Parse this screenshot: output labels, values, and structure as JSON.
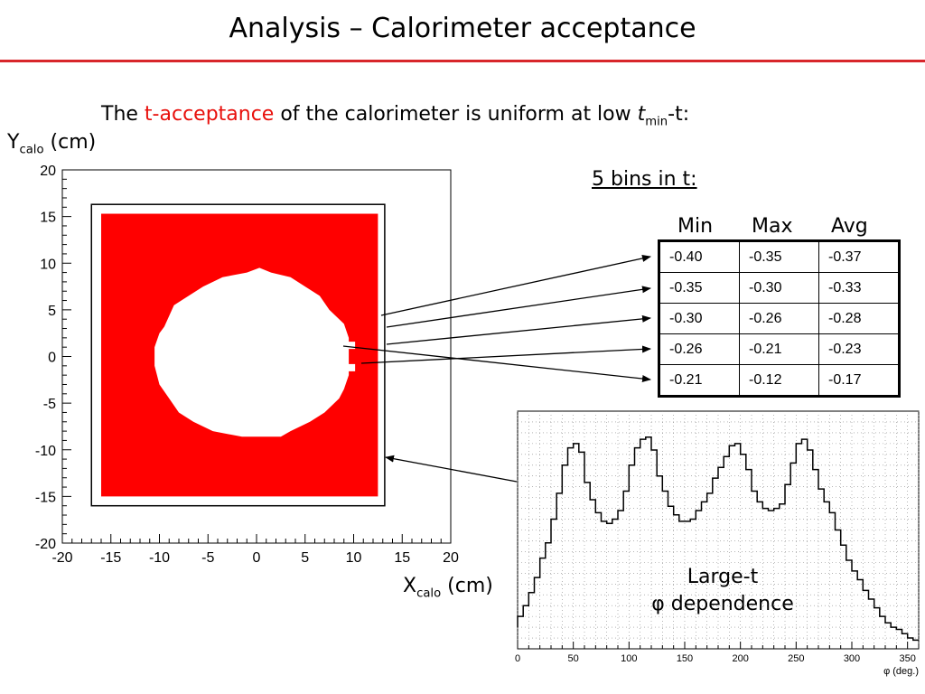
{
  "slide": {
    "title": "Analysis – Calorimeter acceptance",
    "subtitle_pre": "The ",
    "subtitle_highlight": "t-acceptance",
    "subtitle_post": " of the calorimeter is uniform at low ",
    "subtitle_t": "t",
    "subtitle_sub": "min",
    "subtitle_end": "-t:",
    "y_label": "Y",
    "y_label_sub": "calo",
    "y_label_unit": " (cm)",
    "x_label": "X",
    "x_label_sub": "calo",
    "x_label_unit": " (cm)",
    "bins_title": "5 bins in t:",
    "note_line1": "Large-t",
    "note_line2": "φ dependence",
    "accent_color": "#e8100c"
  },
  "table": {
    "headers": [
      "Min",
      "Max",
      "Avg"
    ],
    "rows": [
      [
        "-0.40",
        "-0.35",
        "-0.37"
      ],
      [
        "-0.35",
        "-0.30",
        "-0.33"
      ],
      [
        "-0.30",
        "-0.26",
        "-0.28"
      ],
      [
        "-0.26",
        "-0.21",
        "-0.23"
      ],
      [
        "-0.21",
        "-0.12",
        "-0.17"
      ]
    ]
  },
  "chart_data": [
    {
      "type": "heatmap",
      "title": "",
      "xlabel": "",
      "ylabel": "",
      "xlim": [
        -20,
        20
      ],
      "ylim": [
        -20,
        20
      ],
      "x_ticks": [
        "-20",
        "-15",
        "-10",
        "-5",
        "0",
        "5",
        "10",
        "15",
        "20"
      ],
      "y_ticks": [
        "20",
        "15",
        "10",
        "5",
        "0",
        "-5",
        "-10",
        "-15",
        "-20"
      ],
      "filled_region": {
        "x": [
          -16,
          12.5
        ],
        "y": [
          -15,
          15.3
        ],
        "color": "#ff0000"
      },
      "outer_frame": {
        "x": [
          -17,
          13.2
        ],
        "y": [
          -16,
          16.3
        ]
      },
      "hole_boundary": [
        [
          -9.5,
          3.2
        ],
        [
          -8.5,
          5.5
        ],
        [
          -7,
          6.5
        ],
        [
          -5.5,
          7.5
        ],
        [
          -3.5,
          8.5
        ],
        [
          -1,
          9
        ],
        [
          0.3,
          9.5
        ],
        [
          1.5,
          9
        ],
        [
          3.5,
          8.5
        ],
        [
          5,
          7.5
        ],
        [
          6.5,
          6.5
        ],
        [
          7.5,
          5
        ],
        [
          9,
          3.5
        ],
        [
          9.5,
          2
        ],
        [
          9.5,
          0
        ],
        [
          9.5,
          -2
        ],
        [
          9,
          -3.5
        ],
        [
          8.5,
          -4.5
        ],
        [
          7,
          -6
        ],
        [
          5.5,
          -7
        ],
        [
          3.5,
          -8
        ],
        [
          2.5,
          -8.6
        ],
        [
          -1.5,
          -8.6
        ],
        [
          -4.5,
          -8
        ],
        [
          -6.5,
          -7
        ],
        [
          -8,
          -6
        ],
        [
          -9,
          -4.5
        ],
        [
          -10,
          -3
        ],
        [
          -10.5,
          -1
        ],
        [
          -10.5,
          1
        ],
        [
          -10,
          2.5
        ]
      ],
      "hole_notches": [
        [
          9.5,
          1.2
        ],
        [
          9.5,
          -1.2
        ]
      ]
    },
    {
      "type": "line",
      "title": "",
      "xlabel": "φ (deg.)",
      "ylabel": "",
      "xlim": [
        0,
        360
      ],
      "ylim": [
        0,
        1.1
      ],
      "x_ticks": [
        "0",
        "50",
        "100",
        "150",
        "200",
        "250",
        "300",
        "350"
      ],
      "series": [
        {
          "x": [
            -2.5,
            2.5,
            7.5,
            12.5,
            17.5,
            22.5,
            27.5,
            32.5,
            37.5,
            42.5,
            47.5,
            52.5,
            57.5,
            62.5,
            67.5,
            72.5,
            77.5,
            82.5,
            87.5,
            92.5,
            97.5,
            102.5,
            107.5,
            112.5,
            117.5,
            122.5,
            127.5,
            132.5,
            137.5,
            142.5,
            147.5,
            152.5,
            157.5,
            162.5,
            167.5,
            172.5,
            177.5,
            182.5,
            187.5,
            192.5,
            197.5,
            202.5,
            207.5,
            212.5,
            217.5,
            222.5,
            227.5,
            232.5,
            237.5,
            242.5,
            247.5,
            252.5,
            257.5,
            262.5,
            267.5,
            272.5,
            277.5,
            282.5,
            287.5,
            292.5,
            297.5,
            302.5,
            307.5,
            312.5,
            317.5,
            322.5,
            327.5,
            332.5,
            337.5,
            342.5,
            347.5,
            352.5,
            357.5
          ],
          "values": [
            0.1,
            0.15,
            0.2,
            0.26,
            0.33,
            0.42,
            0.49,
            0.6,
            0.72,
            0.85,
            0.93,
            0.95,
            0.91,
            0.77,
            0.69,
            0.63,
            0.59,
            0.58,
            0.6,
            0.64,
            0.73,
            0.85,
            0.93,
            0.97,
            0.98,
            0.92,
            0.8,
            0.73,
            0.66,
            0.62,
            0.59,
            0.59,
            0.6,
            0.64,
            0.68,
            0.72,
            0.79,
            0.84,
            0.89,
            0.94,
            0.95,
            0.9,
            0.83,
            0.73,
            0.68,
            0.65,
            0.64,
            0.65,
            0.67,
            0.76,
            0.86,
            0.95,
            0.97,
            0.92,
            0.83,
            0.74,
            0.68,
            0.63,
            0.55,
            0.48,
            0.41,
            0.36,
            0.32,
            0.27,
            0.23,
            0.19,
            0.15,
            0.12,
            0.1,
            0.09,
            0.07,
            0.05,
            0.04
          ]
        }
      ]
    }
  ]
}
